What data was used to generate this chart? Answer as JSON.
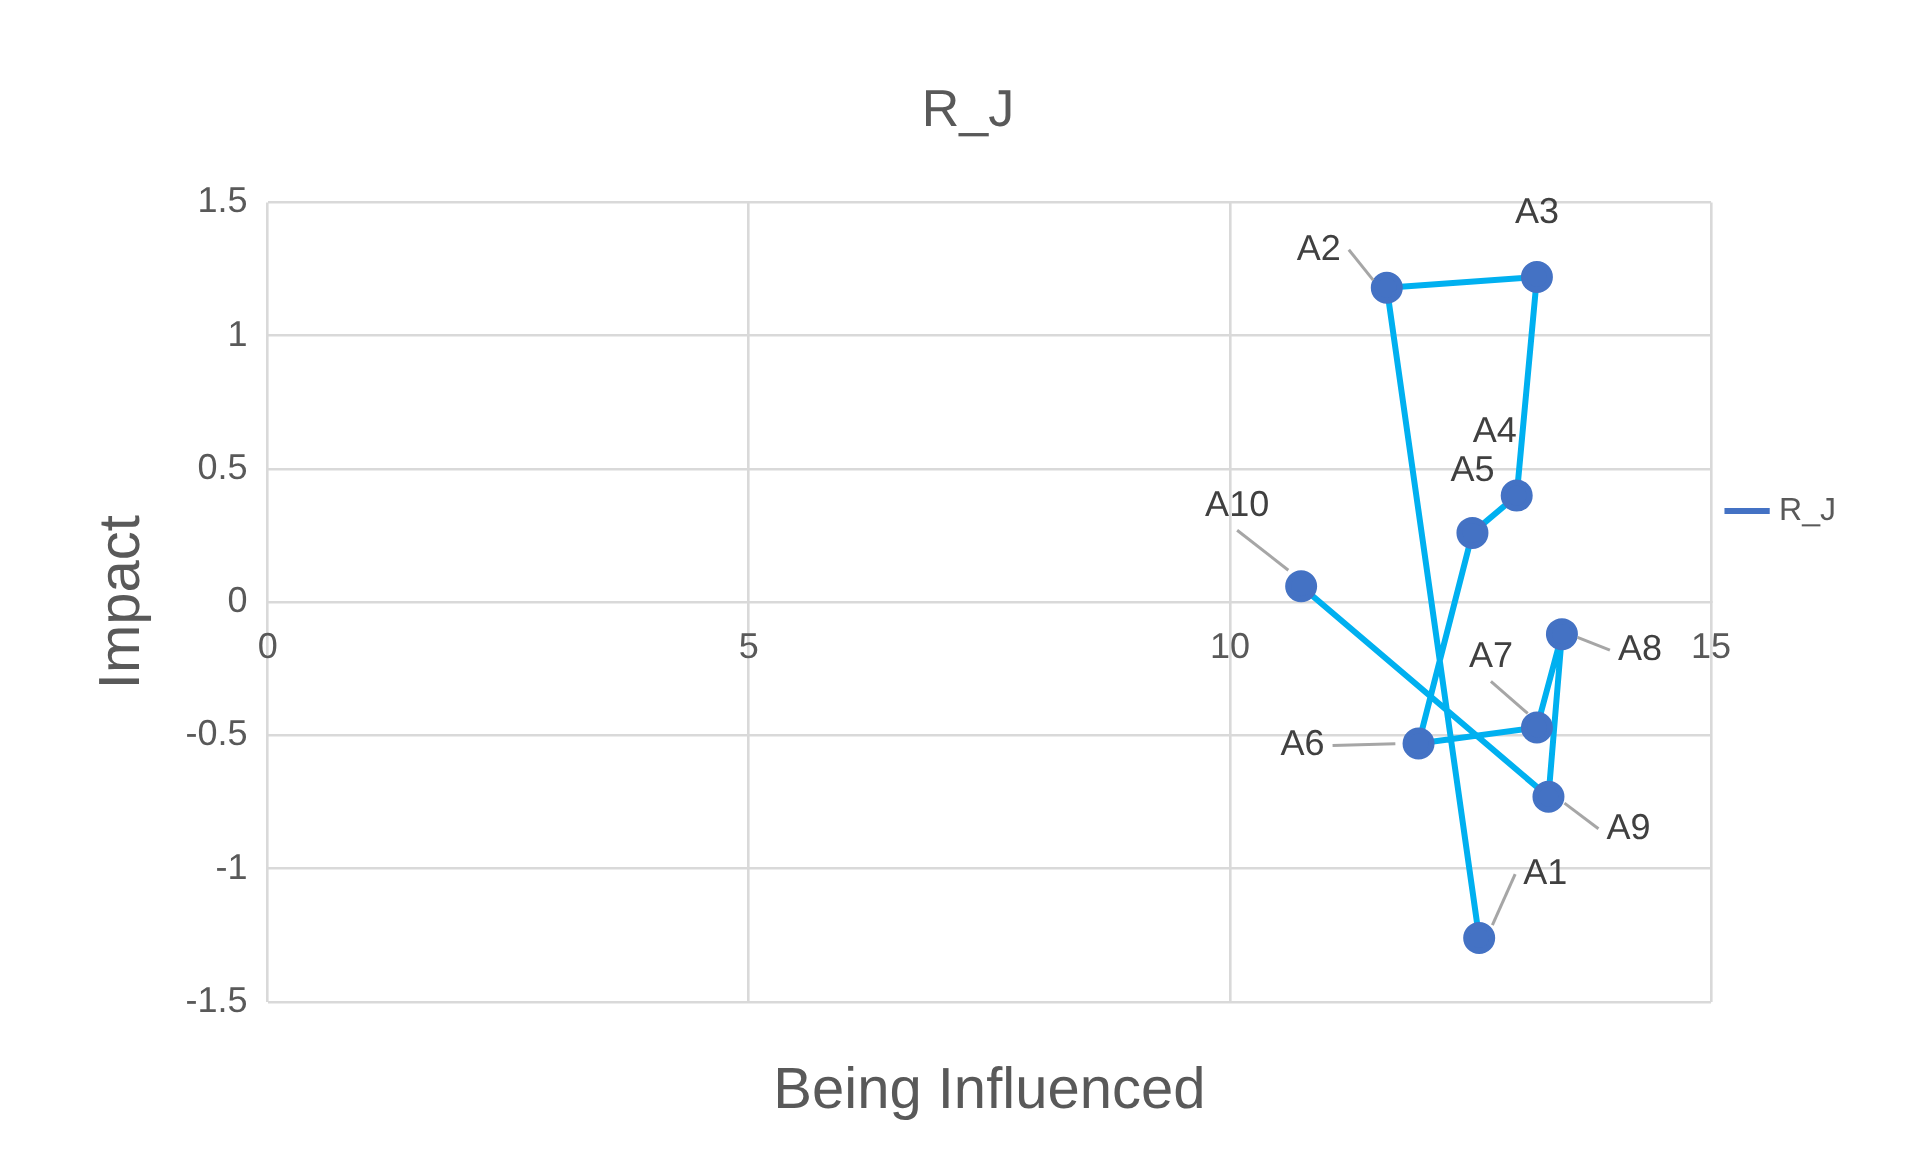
{
  "chart_data": {
    "type": "line",
    "title": "R_J",
    "xlabel": "Being Influenced",
    "ylabel": "Impact",
    "xlim": [
      0,
      15
    ],
    "xticks": [
      0,
      5,
      10,
      15
    ],
    "ylim": [
      -1.5,
      1.5
    ],
    "yticks": [
      -1.5,
      -1,
      -0.5,
      0,
      0.5,
      1,
      1.5
    ],
    "grid": true,
    "legend": "right",
    "marker": "circle",
    "series": [
      {
        "name": "R_J",
        "color": "#00b0f0",
        "colors": [
          "#4472c4",
          "#4472c4",
          "#4472c4",
          "#4472c4",
          "#4472c4",
          "#4472c4",
          "#4472c4",
          "#4472c4",
          "#4472c4",
          "#4472c4"
        ],
        "x": [
          12.59,
          11.63,
          13.19,
          12.98,
          12.52,
          11.96,
          13.19,
          13.45,
          13.31,
          10.74
        ],
        "values": [
          -1.26,
          1.18,
          1.22,
          0.4,
          0.26,
          -0.53,
          -0.47,
          -0.12,
          -0.73,
          0.06
        ]
      }
    ],
    "annotations": [
      {
        "text": "A1",
        "x": 12.59,
        "y": -1.26
      },
      {
        "text": "A2",
        "x": 11.63,
        "y": 1.18
      },
      {
        "text": "A3",
        "x": 13.19,
        "y": 1.22
      },
      {
        "text": "A4",
        "x": 12.98,
        "y": 0.4
      },
      {
        "text": "A5",
        "x": 12.52,
        "y": 0.26
      },
      {
        "text": "A6",
        "x": 11.96,
        "y": -0.53
      },
      {
        "text": "A7",
        "x": 13.19,
        "y": -0.47
      },
      {
        "text": "A8",
        "x": 13.45,
        "y": -0.12
      },
      {
        "text": "A9",
        "x": 13.31,
        "y": -0.73
      },
      {
        "text": "A10",
        "x": 10.74,
        "y": 0.06
      }
    ]
  }
}
